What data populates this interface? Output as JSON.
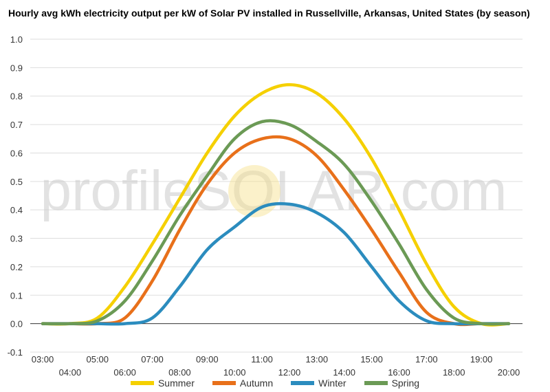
{
  "chart_data": {
    "type": "line",
    "title": "Hourly avg kWh electricity output per kW of Solar PV installed in Russellville, Arkansas, United States (by season)",
    "watermark": "profileSOLAR.com",
    "xlabel": "",
    "ylabel": "",
    "ylim": [
      -0.1,
      1.0
    ],
    "yticks": [
      "1.0",
      "0.9",
      "0.8",
      "0.7",
      "0.6",
      "0.5",
      "0.4",
      "0.3",
      "0.2",
      "0.1",
      "0.0",
      "-0.1"
    ],
    "ytick_values": [
      1.0,
      0.9,
      0.8,
      0.7,
      0.6,
      0.5,
      0.4,
      0.3,
      0.2,
      0.1,
      0.0,
      -0.1
    ],
    "x": [
      "03:00",
      "04:00",
      "05:00",
      "06:00",
      "07:00",
      "08:00",
      "09:00",
      "10:00",
      "11:00",
      "12:00",
      "13:00",
      "14:00",
      "15:00",
      "16:00",
      "17:00",
      "18:00",
      "19:00",
      "20:00"
    ],
    "grid": true,
    "legend_position": "bottom",
    "series": [
      {
        "name": "Summer",
        "color": "#f5d000",
        "values": [
          0.0,
          0.0,
          0.02,
          0.13,
          0.28,
          0.44,
          0.6,
          0.73,
          0.81,
          0.84,
          0.81,
          0.72,
          0.58,
          0.4,
          0.21,
          0.06,
          0.0,
          0.0
        ]
      },
      {
        "name": "Autumn",
        "color": "#e8701a",
        "values": [
          0.0,
          0.0,
          0.0,
          0.02,
          0.15,
          0.33,
          0.49,
          0.6,
          0.65,
          0.65,
          0.59,
          0.47,
          0.33,
          0.18,
          0.04,
          0.0,
          0.0,
          0.0
        ]
      },
      {
        "name": "Winter",
        "color": "#2b8cbe",
        "values": [
          0.0,
          0.0,
          0.0,
          0.0,
          0.02,
          0.13,
          0.26,
          0.34,
          0.41,
          0.42,
          0.39,
          0.32,
          0.2,
          0.08,
          0.01,
          0.0,
          0.0,
          0.0
        ]
      },
      {
        "name": "Spring",
        "color": "#6b9a55",
        "values": [
          0.0,
          0.0,
          0.01,
          0.08,
          0.22,
          0.38,
          0.52,
          0.65,
          0.71,
          0.7,
          0.64,
          0.56,
          0.43,
          0.28,
          0.12,
          0.02,
          0.0,
          0.0
        ]
      }
    ]
  }
}
